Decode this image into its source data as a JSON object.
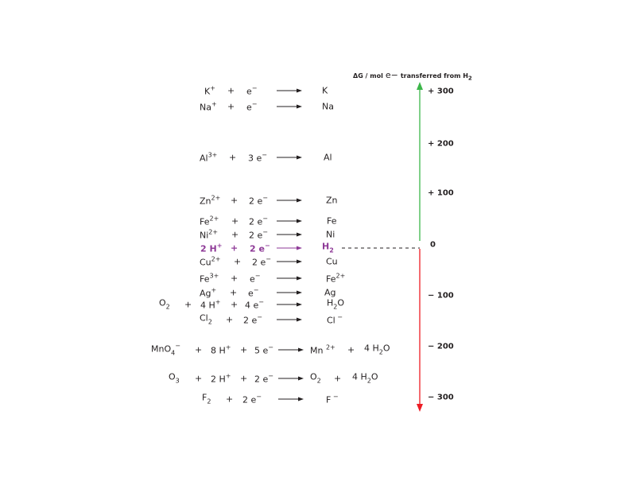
{
  "axis": {
    "title_prefix": "ΔG / mol",
    "title_e": "e−",
    "title_suffix": "transferred from H",
    "title_sub": "2",
    "ticks": [
      {
        "label": "+ 300",
        "value": 300
      },
      {
        "label": "+ 200",
        "value": 200
      },
      {
        "label": "+ 100",
        "value": 100
      },
      {
        "label": "0",
        "value": 0
      },
      {
        "label": "− 100",
        "value": -100
      },
      {
        "label": "− 200",
        "value": -200
      },
      {
        "label": "− 300",
        "value": -300
      }
    ],
    "positive_color": "#3cb64a",
    "negative_color": "#ed1c24"
  },
  "highlight_color": "#8e3a97",
  "reactions": [
    {
      "id": "k",
      "terms": [
        {
          "t": "K",
          "sup": "+"
        },
        {
          "t": "+"
        },
        {
          "t": "e",
          "sup": "−"
        },
        {
          "arrow": true
        },
        {
          "t": "K"
        }
      ]
    },
    {
      "id": "na",
      "terms": [
        {
          "t": "Na",
          "sup": "+"
        },
        {
          "t": "+"
        },
        {
          "t": "e",
          "sup": "−"
        },
        {
          "arrow": true
        },
        {
          "t": "Na"
        }
      ]
    },
    {
      "id": "al",
      "terms": [
        {
          "t": "Al",
          "sup": "3+"
        },
        {
          "t": "+"
        },
        {
          "t": "3 e",
          "sup": "−"
        },
        {
          "arrow": true
        },
        {
          "t": "Al"
        }
      ]
    },
    {
      "id": "zn",
      "terms": [
        {
          "t": "Zn",
          "sup": "2+"
        },
        {
          "t": "+"
        },
        {
          "t": "2 e",
          "sup": "−"
        },
        {
          "arrow": true
        },
        {
          "t": "Zn"
        }
      ]
    },
    {
      "id": "fe",
      "terms": [
        {
          "t": "Fe",
          "sup": "2+"
        },
        {
          "t": "+"
        },
        {
          "t": "2 e",
          "sup": "−"
        },
        {
          "arrow": true
        },
        {
          "t": "Fe"
        }
      ]
    },
    {
      "id": "ni",
      "terms": [
        {
          "t": "Ni",
          "sup": "2+"
        },
        {
          "t": "+"
        },
        {
          "t": "2 e",
          "sup": "−"
        },
        {
          "arrow": true
        },
        {
          "t": "Ni"
        }
      ]
    },
    {
      "id": "h",
      "highlight": true,
      "terms": [
        {
          "t": "2 H",
          "sup": "+"
        },
        {
          "t": "+"
        },
        {
          "t": "2 e",
          "sup": "−"
        },
        {
          "arrow": true
        },
        {
          "t": "H",
          "sub": "2"
        }
      ]
    },
    {
      "id": "cu",
      "terms": [
        {
          "t": "Cu",
          "sup": "2+"
        },
        {
          "t": "+"
        },
        {
          "t": "2 e",
          "sup": "−"
        },
        {
          "arrow": true
        },
        {
          "t": "Cu"
        }
      ]
    },
    {
      "id": "fe3",
      "terms": [
        {
          "t": "Fe",
          "sup": "3+"
        },
        {
          "t": "+"
        },
        {
          "t": "e",
          "sup": "−"
        },
        {
          "arrow": true
        },
        {
          "t": "Fe",
          "sup": "2+"
        }
      ]
    },
    {
      "id": "ag",
      "terms": [
        {
          "t": "Ag",
          "sup": "+"
        },
        {
          "t": "+"
        },
        {
          "t": "e",
          "sup": "−"
        },
        {
          "arrow": true
        },
        {
          "t": "Ag"
        }
      ]
    },
    {
      "id": "o2",
      "terms": [
        {
          "t": "O",
          "sub": "2"
        },
        {
          "t": "+"
        },
        {
          "t": "4 H",
          "sup": "+"
        },
        {
          "t": "+"
        },
        {
          "t": "4 e",
          "sup": "−"
        },
        {
          "arrow": true
        },
        {
          "t": "H",
          "sub": "2",
          "t2": "O"
        }
      ]
    },
    {
      "id": "cl",
      "terms": [
        {
          "t": "Cl",
          "sub": "2"
        },
        {
          "t": "+"
        },
        {
          "t": "2 e",
          "sup": "−"
        },
        {
          "arrow": true
        },
        {
          "t": "Cl",
          "sup": " −"
        }
      ]
    },
    {
      "id": "mno4",
      "terms": [
        {
          "t": "MnO",
          "sub": "4",
          "sup": "−"
        },
        {
          "t": "+"
        },
        {
          "t": "8 H",
          "sup": "+"
        },
        {
          "t": "+"
        },
        {
          "t": "5 e",
          "sup": "−"
        },
        {
          "arrow": true
        },
        {
          "t": "Mn ",
          "sup": "2+"
        },
        {
          "t": "+"
        },
        {
          "t": "4 H",
          "sub": "2",
          "t2": "O"
        }
      ]
    },
    {
      "id": "o3",
      "terms": [
        {
          "t": "O",
          "sub": "3"
        },
        {
          "t": "+"
        },
        {
          "t": "2 H",
          "sup": "+"
        },
        {
          "t": "+"
        },
        {
          "t": "2 e",
          "sup": "−"
        },
        {
          "arrow": true
        },
        {
          "t": "O",
          "sub": "2"
        },
        {
          "t": "+"
        },
        {
          "t": "4 H",
          "sub": "2",
          "t2": "O"
        }
      ]
    },
    {
      "id": "f",
      "terms": [
        {
          "t": "F",
          "sub": "2"
        },
        {
          "t": "+"
        },
        {
          "t": "2 e",
          "sup": "−"
        },
        {
          "arrow": true
        },
        {
          "t": "F",
          "sup": " −"
        }
      ]
    }
  ]
}
